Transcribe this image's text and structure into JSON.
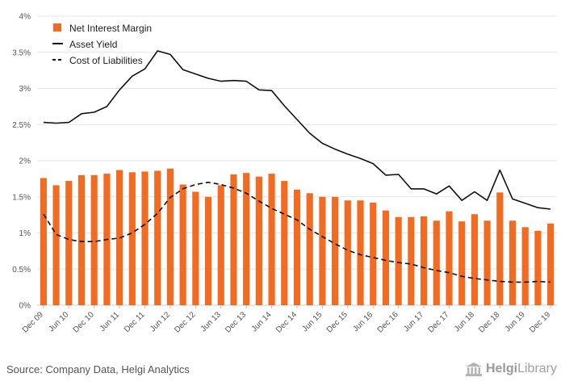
{
  "chart_data": {
    "type": "bar",
    "ylim": [
      0,
      4
    ],
    "yticks": [
      "0%",
      "0.5%",
      "1%",
      "1.5%",
      "2%",
      "2.5%",
      "3%",
      "3.5%",
      "4%"
    ],
    "x_tick_labels": [
      "Dec 09",
      "Jun 10",
      "Dec 10",
      "Jun 11",
      "Dec 11",
      "Jun 12",
      "Dec 12",
      "Jun 13",
      "Dec 13",
      "Jun 14",
      "Dec 14",
      "Jun 15",
      "Dec 15",
      "Jun 16",
      "Dec 16",
      "Jun 17",
      "Dec 17",
      "Jun 18",
      "Dec 18",
      "Jun 19",
      "Dec 19"
    ],
    "categories": [
      "Dec 09",
      "Mar 10",
      "Jun 10",
      "Sep 10",
      "Dec 10",
      "Mar 11",
      "Jun 11",
      "Sep 11",
      "Dec 11",
      "Mar 12",
      "Jun 12",
      "Sep 12",
      "Dec 12",
      "Mar 13",
      "Jun 13",
      "Sep 13",
      "Dec 13",
      "Mar 14",
      "Jun 14",
      "Sep 14",
      "Dec 14",
      "Mar 15",
      "Jun 15",
      "Sep 15",
      "Dec 15",
      "Mar 16",
      "Jun 16",
      "Sep 16",
      "Dec 16",
      "Mar 17",
      "Jun 17",
      "Sep 17",
      "Dec 17",
      "Mar 18",
      "Jun 18",
      "Sep 18",
      "Dec 18",
      "Mar 19",
      "Jun 19",
      "Sep 19",
      "Dec 19"
    ],
    "series": [
      {
        "name": "Net Interest Margin",
        "kind": "bar",
        "color": "#f26b21",
        "values": [
          1.76,
          1.66,
          1.72,
          1.8,
          1.8,
          1.82,
          1.87,
          1.84,
          1.85,
          1.86,
          1.89,
          1.67,
          1.57,
          1.5,
          1.66,
          1.81,
          1.83,
          1.78,
          1.82,
          1.72,
          1.6,
          1.55,
          1.5,
          1.5,
          1.45,
          1.45,
          1.42,
          1.31,
          1.22,
          1.22,
          1.23,
          1.17,
          1.3,
          1.16,
          1.26,
          1.17,
          1.56,
          1.17,
          1.08,
          1.03,
          1.13
        ]
      },
      {
        "name": "Asset Yield",
        "kind": "line",
        "color": "#111111",
        "values": [
          2.53,
          2.52,
          2.53,
          2.65,
          2.67,
          2.75,
          2.98,
          3.17,
          3.27,
          3.52,
          3.47,
          3.26,
          3.2,
          3.14,
          3.1,
          3.11,
          3.1,
          2.98,
          2.97,
          2.76,
          2.57,
          2.38,
          2.24,
          2.16,
          2.09,
          2.03,
          1.96,
          1.8,
          1.81,
          1.61,
          1.61,
          1.54,
          1.65,
          1.45,
          1.57,
          1.45,
          1.87,
          1.47,
          1.41,
          1.35,
          1.33
        ]
      },
      {
        "name": "Cost of Liabilities",
        "kind": "line-dashed",
        "color": "#111111",
        "values": [
          1.26,
          0.98,
          0.91,
          0.88,
          0.88,
          0.91,
          0.93,
          1.0,
          1.12,
          1.27,
          1.49,
          1.61,
          1.67,
          1.7,
          1.67,
          1.62,
          1.55,
          1.44,
          1.34,
          1.26,
          1.18,
          1.05,
          0.95,
          0.85,
          0.76,
          0.7,
          0.66,
          0.62,
          0.59,
          0.57,
          0.52,
          0.48,
          0.45,
          0.4,
          0.37,
          0.35,
          0.33,
          0.32,
          0.32,
          0.33,
          0.32
        ]
      }
    ],
    "grid": true,
    "legend_position": "top-left"
  },
  "footer": {
    "source": "Source: Company Data, Helgi Analytics",
    "brand_bold": "Helgi",
    "brand_light": "Library"
  }
}
